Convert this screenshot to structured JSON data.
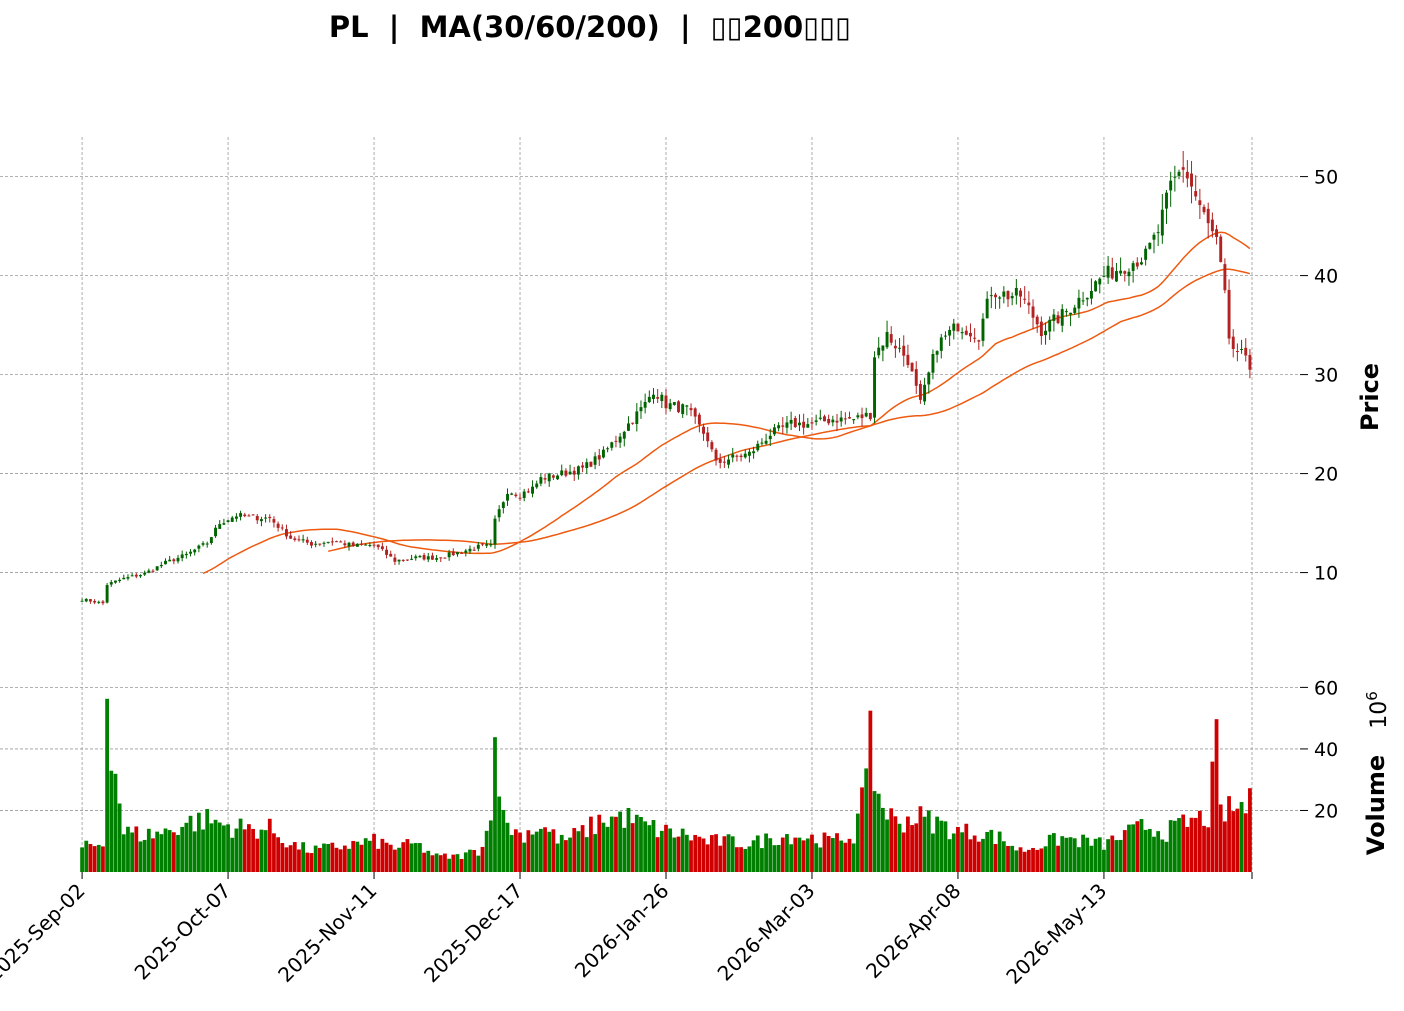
{
  "chart_data": {
    "type": "candlestick",
    "title": "PL  |  MA(30/60/200)  |  ▯▯200▯▯▯",
    "price_panel": {
      "ylabel": "Price",
      "yticks": [
        "10",
        "20",
        "30",
        "40",
        "50"
      ],
      "ylim": [
        4.2,
        54.0
      ],
      "grid": true
    },
    "volume_panel": {
      "ylabel": "Volume",
      "multiplier_label": "10",
      "multiplier_exp": "6",
      "yticks": [
        "20",
        "40",
        "60"
      ],
      "ylim": [
        0,
        65
      ],
      "grid": true
    },
    "x_tick_labels": [
      "2025-Sep-02",
      "2025-Oct-07",
      "2025-Nov-11",
      "2025-Dec-17",
      "2026-Jan-26",
      "2026-Mar-03",
      "2026-Apr-08",
      "2026-May-13"
    ],
    "x_tick_index": [
      0,
      35,
      70,
      105,
      140,
      175,
      210,
      245
    ],
    "n_bars": 281,
    "colors": {
      "up": "#006400",
      "down": "#b22222",
      "vol_up": "#008000",
      "vol_down": "#d00000",
      "ma": "#ee5a10"
    },
    "close_anchors": [
      [
        0,
        7.3
      ],
      [
        5,
        6.9
      ],
      [
        6,
        8.8
      ],
      [
        10,
        9.4
      ],
      [
        15,
        9.9
      ],
      [
        20,
        11.0
      ],
      [
        25,
        11.8
      ],
      [
        30,
        13.0
      ],
      [
        33,
        15.0
      ],
      [
        37,
        15.8
      ],
      [
        40,
        15.6
      ],
      [
        45,
        15.5
      ],
      [
        50,
        13.5
      ],
      [
        55,
        12.9
      ],
      [
        60,
        13.2
      ],
      [
        65,
        12.7
      ],
      [
        70,
        12.8
      ],
      [
        75,
        11.2
      ],
      [
        80,
        11.5
      ],
      [
        85,
        11.5
      ],
      [
        90,
        12.0
      ],
      [
        95,
        12.6
      ],
      [
        98,
        12.7
      ],
      [
        99,
        15.2
      ],
      [
        102,
        18.3
      ],
      [
        105,
        17.9
      ],
      [
        108,
        18.5
      ],
      [
        110,
        19.5
      ],
      [
        115,
        20.0
      ],
      [
        120,
        20.5
      ],
      [
        125,
        22.0
      ],
      [
        130,
        24.5
      ],
      [
        135,
        27.0
      ],
      [
        137,
        28.5
      ],
      [
        140,
        27.0
      ],
      [
        145,
        26.5
      ],
      [
        150,
        23.5
      ],
      [
        152,
        21.0
      ],
      [
        155,
        21.5
      ],
      [
        160,
        22.0
      ],
      [
        165,
        24.0
      ],
      [
        170,
        25.0
      ],
      [
        175,
        25.0
      ],
      [
        180,
        25.5
      ],
      [
        185,
        25.5
      ],
      [
        189,
        26.0
      ],
      [
        190,
        32.0
      ],
      [
        193,
        34.0
      ],
      [
        195,
        33.0
      ],
      [
        198,
        31.5
      ],
      [
        201,
        27.0
      ],
      [
        205,
        33.0
      ],
      [
        210,
        35.0
      ],
      [
        215,
        34.0
      ],
      [
        218,
        38.5
      ],
      [
        222,
        38.0
      ],
      [
        225,
        38.0
      ],
      [
        230,
        34.5
      ],
      [
        235,
        36.0
      ],
      [
        240,
        38.0
      ],
      [
        245,
        40.0
      ],
      [
        250,
        41.0
      ],
      [
        255,
        42.0
      ],
      [
        258,
        44.5
      ],
      [
        261,
        49.0
      ],
      [
        264,
        51.0
      ],
      [
        267,
        48.0
      ],
      [
        270,
        45.0
      ],
      [
        272,
        43.5
      ],
      [
        274,
        38.0
      ],
      [
        275,
        33.0
      ],
      [
        278,
        32.0
      ],
      [
        281,
        30.0
      ],
      [
        283,
        28.5
      ]
    ],
    "volume_anchors": [
      [
        0,
        8
      ],
      [
        5,
        9
      ],
      [
        6,
        62
      ],
      [
        7,
        43
      ],
      [
        8,
        32
      ],
      [
        9,
        24
      ],
      [
        10,
        13
      ],
      [
        15,
        12
      ],
      [
        20,
        13
      ],
      [
        25,
        16
      ],
      [
        30,
        17
      ],
      [
        35,
        15
      ],
      [
        40,
        14
      ],
      [
        45,
        14
      ],
      [
        50,
        9
      ],
      [
        55,
        7
      ],
      [
        60,
        8
      ],
      [
        65,
        9
      ],
      [
        70,
        10
      ],
      [
        75,
        8
      ],
      [
        80,
        9
      ],
      [
        85,
        5
      ],
      [
        90,
        5
      ],
      [
        95,
        7
      ],
      [
        98,
        16
      ],
      [
        99,
        58
      ],
      [
        100,
        30
      ],
      [
        101,
        17
      ],
      [
        105,
        12
      ],
      [
        110,
        15
      ],
      [
        115,
        10
      ],
      [
        120,
        13
      ],
      [
        125,
        17
      ],
      [
        130,
        18
      ],
      [
        135,
        15
      ],
      [
        140,
        13
      ],
      [
        145,
        12
      ],
      [
        150,
        10
      ],
      [
        155,
        10
      ],
      [
        160,
        9
      ],
      [
        165,
        11
      ],
      [
        170,
        12
      ],
      [
        175,
        11
      ],
      [
        180,
        10
      ],
      [
        185,
        12
      ],
      [
        188,
        27
      ],
      [
        189,
        62
      ],
      [
        190,
        27
      ],
      [
        192,
        22
      ],
      [
        195,
        16
      ],
      [
        200,
        18
      ],
      [
        205,
        16
      ],
      [
        210,
        13
      ],
      [
        215,
        13
      ],
      [
        220,
        11
      ],
      [
        225,
        7
      ],
      [
        230,
        9
      ],
      [
        235,
        11
      ],
      [
        240,
        10
      ],
      [
        245,
        9
      ],
      [
        250,
        12
      ],
      [
        255,
        15
      ],
      [
        260,
        13
      ],
      [
        265,
        16
      ],
      [
        270,
        18
      ],
      [
        272,
        40
      ],
      [
        273,
        19
      ],
      [
        275,
        20
      ],
      [
        280,
        22
      ],
      [
        283,
        9
      ]
    ],
    "ma_labels": [
      "MA30",
      "MA60",
      "MA200"
    ]
  }
}
